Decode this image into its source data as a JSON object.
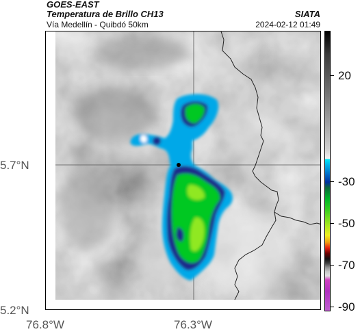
{
  "header": {
    "agency": "GOES-EAST",
    "title": "Temperatura de Brillo CH13",
    "subtitle": "Vía Medellín - Quibdó 50km",
    "credit": "SIATA",
    "datetime": "2024-02-12 01:49"
  },
  "map": {
    "ylabels": [
      "5.7°N",
      "5.2°N"
    ],
    "xlabels": [
      "76.8°W",
      "76.3°W"
    ]
  },
  "colorbar": {
    "labels": [
      "20",
      "-30",
      "-50",
      "-70",
      "-90"
    ]
  },
  "colors": {
    "cloud_cold": "#00c820",
    "cloud_colder": "#b0f020",
    "edge_blue": "#00a0e0",
    "core_navy": "#1a2a8a",
    "border_line": "#222222"
  }
}
